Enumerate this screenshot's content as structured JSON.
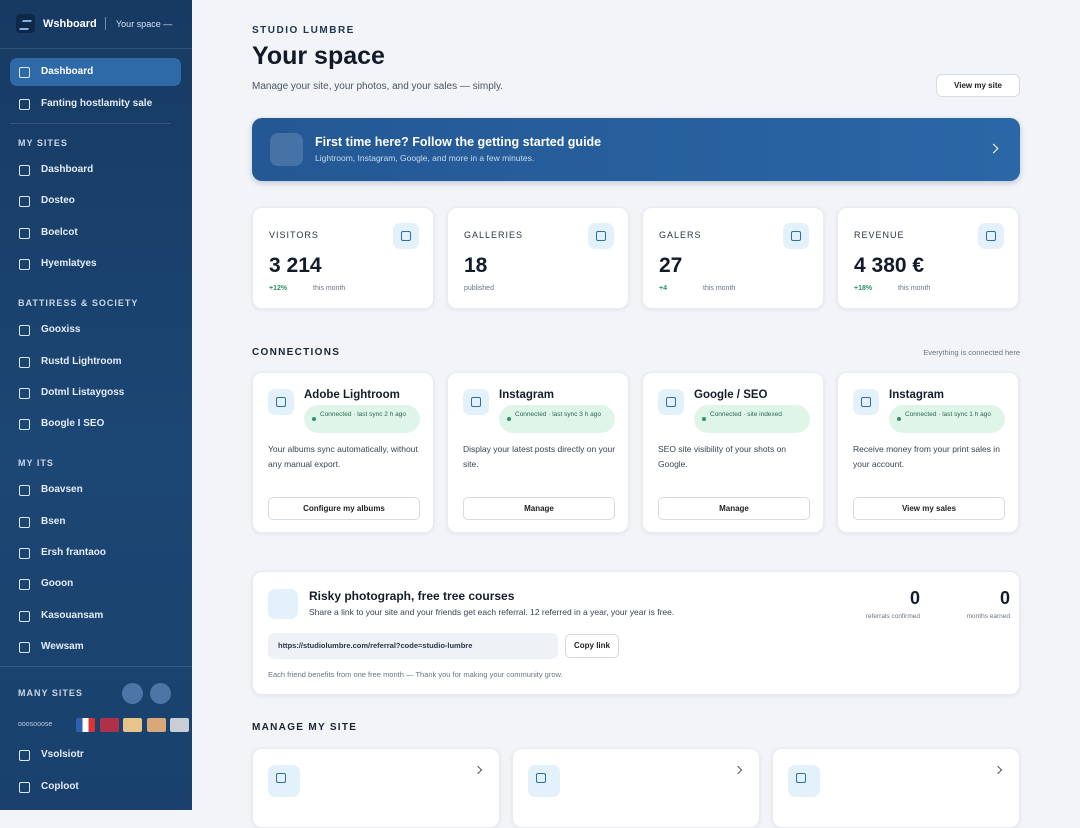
{
  "sidebar": {
    "brand": "Wshboard",
    "space": "Your space —",
    "top_items": [
      "Dashboard",
      "Fanting hostlamity sale"
    ],
    "sections": [
      {
        "title": "MY SITES",
        "items": [
          "Dashboard",
          "Dosteo",
          "Boelcot",
          "Hyemlatyes"
        ]
      },
      {
        "title": "BATTIRESS & SOCIETY",
        "items": [
          "Gooxiss",
          "Rustd Lightroom",
          "Dotml Listaygoss",
          "Boogle I SEO"
        ]
      },
      {
        "title": "MY ITS",
        "items": [
          "Boavsen",
          "Bsen",
          "Ersh frantaoo",
          "Gooon",
          "Kasouansam",
          "Wewsam"
        ]
      }
    ],
    "sites_title": "MANY SITES",
    "language_label": "ooosooose",
    "bottom_items": [
      "Vsolsiotr",
      "Coploot"
    ]
  },
  "header": {
    "eyebrow": "STUDIO LUMBRE",
    "title": "Your space",
    "subtitle": "Manage your site, your photos, and your sales — simply.",
    "button": "View my site"
  },
  "banner": {
    "title": "First time here? Follow the getting started guide",
    "text": "Lightroom, Instagram, Google, and more in a few minutes."
  },
  "stats": [
    {
      "label": "VISITORS",
      "value": "3 214",
      "delta": "+12%",
      "note": "this month"
    },
    {
      "label": "GALLERIES",
      "value": 18,
      "note": "published"
    },
    {
      "label": "GALERS",
      "value": 27,
      "delta": "+4",
      "note": "this month"
    },
    {
      "label": "REVENUE",
      "value": "4 380 €",
      "delta": "+18%",
      "note": "this month"
    }
  ],
  "connections": {
    "title": "CONNECTIONS",
    "link": "Everything is connected here",
    "cards": [
      {
        "name": "Adobe Lightroom",
        "status": "Connected · last sync 2 h ago",
        "text": "Your albums sync automatically, without any manual export.",
        "button": "Configure my albums"
      },
      {
        "name": "Instagram",
        "status": "Connected · last sync 3 h ago",
        "text": "Display your latest posts directly on your site.",
        "button": "Manage"
      },
      {
        "name": "Google / SEO",
        "status": "Connected · site indexed",
        "text": "SEO site visibility of your shots on Google.",
        "button": "Manage"
      },
      {
        "name": "Instagram",
        "status": "Connected · last sync 1 h ago",
        "text": "Receive money from your print sales in your account.",
        "button": "View my sales"
      }
    ]
  },
  "promo": {
    "title": "Risky photograph, free tree courses",
    "text": "Share a link to your site and your friends get each referral. 12 referred in a year, your year is free.",
    "link": "https://studiolumbre.com/referral?code=studio-lumbre",
    "button": "Copy link",
    "note": "Each friend benefits from one free month — Thank you for making your community grow.",
    "metrics": [
      {
        "value": 0,
        "label": "referrals confirmed"
      },
      {
        "value": 0,
        "label": "months earned"
      }
    ]
  },
  "manage": {
    "title": "MANAGE MY SITE"
  }
}
